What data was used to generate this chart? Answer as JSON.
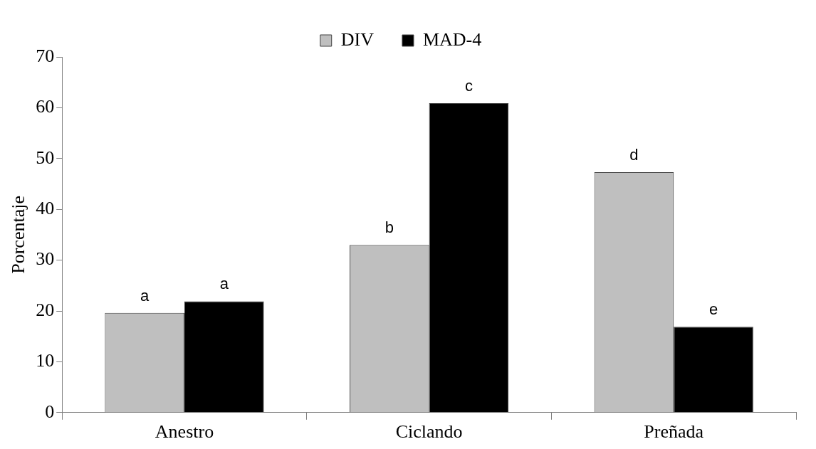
{
  "chart_data": {
    "type": "bar",
    "ylabel": "Porcentaje",
    "categories": [
      "Anestro",
      "Ciclando",
      "Preñada"
    ],
    "series": [
      {
        "name": "DIV",
        "color": "#bfbfbf",
        "values": [
          19.6,
          33.0,
          47.3
        ]
      },
      {
        "name": "MAD-4",
        "color": "#000000",
        "values": [
          21.9,
          60.9,
          16.9
        ]
      }
    ],
    "ylim": [
      0,
      70
    ],
    "yticks": [
      0,
      10,
      20,
      30,
      40,
      50,
      60,
      70
    ],
    "grid": false,
    "legend": "top",
    "annotations": [
      {
        "text": "a",
        "x": "Anestro",
        "y": 19.6
      },
      {
        "text": "a",
        "x": "Anestro",
        "y": 21.9
      },
      {
        "text": "b",
        "x": "Ciclando",
        "y": 33.0
      },
      {
        "text": "c",
        "x": "Ciclando",
        "y": 60.9
      },
      {
        "text": "d",
        "x": "Preñada",
        "y": 47.3
      },
      {
        "text": "e",
        "x": "Preñada",
        "y": 16.9
      }
    ]
  }
}
